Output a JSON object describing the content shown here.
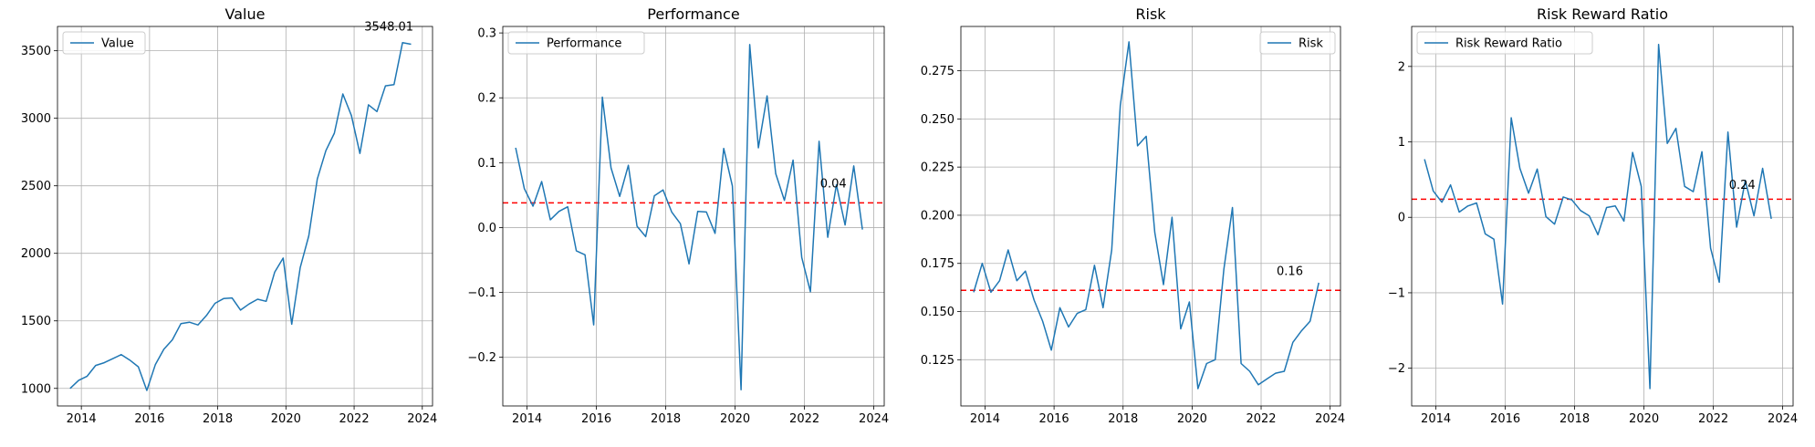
{
  "colors": {
    "line": "#1f77b4",
    "ref_line": "#ff0000",
    "grid": "#b0b0b0",
    "axes": "#000000"
  },
  "chart_data": [
    {
      "type": "line",
      "title": "Value",
      "legend": "top-left",
      "grid": true,
      "xlim": [
        2013.3,
        2024.3
      ],
      "ylim": [
        870,
        3680
      ],
      "xticks": [
        2014,
        2016,
        2018,
        2020,
        2022,
        2024
      ],
      "xtick_labels": [
        "2014",
        "2016",
        "2018",
        "2020",
        "2022",
        "2024"
      ],
      "yticks": [
        1000,
        1500,
        2000,
        2500,
        3000,
        3500
      ],
      "ytick_labels": [
        "1000",
        "1500",
        "2000",
        "2500",
        "3000",
        "3500"
      ],
      "series": [
        {
          "name": "Value",
          "x": [
            2013.67,
            2013.92,
            2014.17,
            2014.42,
            2014.67,
            2014.92,
            2015.17,
            2015.42,
            2015.67,
            2015.92,
            2016.17,
            2016.42,
            2016.67,
            2016.92,
            2017.17,
            2017.42,
            2017.67,
            2017.92,
            2018.17,
            2018.42,
            2018.67,
            2018.92,
            2019.17,
            2019.42,
            2019.67,
            2019.92,
            2020.17,
            2020.42,
            2020.67,
            2020.92,
            2021.17,
            2021.42,
            2021.67,
            2021.92,
            2022.17,
            2022.42,
            2022.67,
            2022.92,
            2023.17,
            2023.42,
            2023.67
          ],
          "values": [
            1000,
            1060,
            1090,
            1170,
            1190,
            1220,
            1250,
            1210,
            1160,
            985,
            1175,
            1290,
            1360,
            1480,
            1490,
            1470,
            1540,
            1630,
            1665,
            1670,
            1580,
            1625,
            1660,
            1645,
            1860,
            1965,
            1475,
            1895,
            2130,
            2550,
            2760,
            2890,
            3180,
            3020,
            2740,
            3100,
            3050,
            3240,
            3250,
            3560,
            3548
          ]
        }
      ],
      "annotations": [
        {
          "text": "3548.01",
          "x": 2022.3,
          "y": 3650
        }
      ]
    },
    {
      "type": "line",
      "title": "Performance",
      "legend": "top-left",
      "grid": true,
      "xlim": [
        2013.3,
        2024.3
      ],
      "ylim": [
        -0.275,
        0.31
      ],
      "xticks": [
        2014,
        2016,
        2018,
        2020,
        2022,
        2024
      ],
      "xtick_labels": [
        "2014",
        "2016",
        "2018",
        "2020",
        "2022",
        "2024"
      ],
      "yticks": [
        -0.2,
        -0.1,
        0.0,
        0.1,
        0.2,
        0.3
      ],
      "ytick_labels": [
        "−0.2",
        "−0.1",
        "0.0",
        "0.1",
        "0.2",
        "0.3"
      ],
      "series": [
        {
          "name": "Performance",
          "x": [
            2013.67,
            2013.92,
            2014.17,
            2014.42,
            2014.67,
            2014.92,
            2015.17,
            2015.42,
            2015.67,
            2015.92,
            2016.17,
            2016.42,
            2016.67,
            2016.92,
            2017.17,
            2017.42,
            2017.67,
            2017.92,
            2018.17,
            2018.42,
            2018.67,
            2018.92,
            2019.17,
            2019.42,
            2019.67,
            2019.92,
            2020.17,
            2020.42,
            2020.67,
            2020.92,
            2021.17,
            2021.42,
            2021.67,
            2021.92,
            2022.17,
            2022.42,
            2022.67,
            2022.92,
            2023.17,
            2023.42,
            2023.67
          ],
          "values": [
            0.123,
            0.06,
            0.033,
            0.071,
            0.012,
            0.025,
            0.032,
            -0.036,
            -0.042,
            -0.15,
            0.201,
            0.092,
            0.048,
            0.096,
            0.002,
            -0.014,
            0.049,
            0.058,
            0.024,
            0.006,
            -0.056,
            0.025,
            0.024,
            -0.009,
            0.122,
            0.064,
            -0.25,
            0.282,
            0.123,
            0.203,
            0.083,
            0.042,
            0.104,
            -0.046,
            -0.099,
            0.133,
            -0.015,
            0.066,
            0.004,
            0.095,
            -0.003
          ]
        }
      ],
      "reference_line": 0.038,
      "annotations": [
        {
          "text": "0.04",
          "x": 2022.45,
          "y": 0.062
        }
      ]
    },
    {
      "type": "line",
      "title": "Risk",
      "legend": "top-right",
      "grid": true,
      "xlim": [
        2013.3,
        2024.3
      ],
      "ylim": [
        0.101,
        0.298
      ],
      "xticks": [
        2014,
        2016,
        2018,
        2020,
        2022,
        2024
      ],
      "xtick_labels": [
        "2014",
        "2016",
        "2018",
        "2020",
        "2022",
        "2024"
      ],
      "yticks": [
        0.125,
        0.15,
        0.175,
        0.2,
        0.225,
        0.25,
        0.275
      ],
      "ytick_labels": [
        "0.125",
        "0.150",
        "0.175",
        "0.200",
        "0.225",
        "0.250",
        "0.275"
      ],
      "series": [
        {
          "name": "Risk",
          "x": [
            2013.67,
            2013.92,
            2014.17,
            2014.42,
            2014.67,
            2014.92,
            2015.17,
            2015.42,
            2015.67,
            2015.92,
            2016.17,
            2016.42,
            2016.67,
            2016.92,
            2017.17,
            2017.42,
            2017.67,
            2017.92,
            2018.17,
            2018.42,
            2018.67,
            2018.92,
            2019.17,
            2019.42,
            2019.67,
            2019.92,
            2020.17,
            2020.42,
            2020.67,
            2020.92,
            2021.17,
            2021.42,
            2021.67,
            2021.92,
            2022.17,
            2022.42,
            2022.67,
            2022.92,
            2023.17,
            2023.42,
            2023.67
          ],
          "values": [
            0.16,
            0.175,
            0.16,
            0.166,
            0.182,
            0.166,
            0.171,
            0.156,
            0.145,
            0.13,
            0.152,
            0.142,
            0.149,
            0.151,
            0.174,
            0.152,
            0.182,
            0.257,
            0.29,
            0.236,
            0.241,
            0.191,
            0.164,
            0.199,
            0.141,
            0.155,
            0.11,
            0.123,
            0.125,
            0.172,
            0.204,
            0.123,
            0.119,
            0.112,
            0.115,
            0.118,
            0.119,
            0.134,
            0.14,
            0.145,
            0.165
          ]
        }
      ],
      "reference_line": 0.161,
      "annotations": [
        {
          "text": "0.16",
          "x": 2022.45,
          "y": 0.169
        }
      ]
    },
    {
      "type": "line",
      "title": "Risk Reward Ratio",
      "legend": "top-left",
      "grid": true,
      "xlim": [
        2013.3,
        2024.3
      ],
      "ylim": [
        -2.5,
        2.53
      ],
      "xticks": [
        2014,
        2016,
        2018,
        2020,
        2022,
        2024
      ],
      "xtick_labels": [
        "2014",
        "2016",
        "2018",
        "2020",
        "2022",
        "2024"
      ],
      "yticks": [
        -2,
        -1,
        0,
        1,
        2
      ],
      "ytick_labels": [
        "−2",
        "−1",
        "0",
        "1",
        "2"
      ],
      "series": [
        {
          "name": "Risk Reward Ratio",
          "x": [
            2013.67,
            2013.92,
            2014.17,
            2014.42,
            2014.67,
            2014.92,
            2015.17,
            2015.42,
            2015.67,
            2015.92,
            2016.17,
            2016.42,
            2016.67,
            2016.92,
            2017.17,
            2017.42,
            2017.67,
            2017.92,
            2018.17,
            2018.42,
            2018.67,
            2018.92,
            2019.17,
            2019.42,
            2019.67,
            2019.92,
            2020.17,
            2020.42,
            2020.67,
            2020.92,
            2021.17,
            2021.42,
            2021.67,
            2021.92,
            2022.17,
            2022.42,
            2022.67,
            2022.92,
            2023.17,
            2023.42,
            2023.67
          ],
          "values": [
            0.77,
            0.35,
            0.2,
            0.43,
            0.07,
            0.15,
            0.19,
            -0.22,
            -0.29,
            -1.15,
            1.32,
            0.65,
            0.32,
            0.64,
            0.01,
            -0.09,
            0.27,
            0.23,
            0.09,
            0.02,
            -0.23,
            0.13,
            0.15,
            -0.05,
            0.86,
            0.41,
            -2.27,
            2.29,
            0.98,
            1.18,
            0.41,
            0.34,
            0.87,
            -0.41,
            -0.86,
            1.13,
            -0.13,
            0.49,
            0.02,
            0.65,
            -0.02
          ]
        }
      ],
      "reference_line": 0.24,
      "annotations": [
        {
          "text": "0.24",
          "x": 2022.45,
          "y": 0.38
        }
      ]
    }
  ]
}
